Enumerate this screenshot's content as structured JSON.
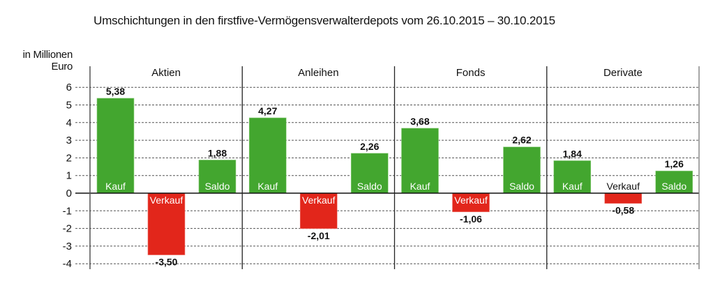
{
  "chart_data": {
    "type": "bar",
    "title": "Umschichtungen in den firstfive-Vermögensverwalterdepots vom 26.10.2015 – 30.10.2015",
    "ylabel": [
      "in Millionen",
      "Euro"
    ],
    "xlabel": "",
    "ylim": [
      -4,
      6
    ],
    "yticks": [
      6,
      5,
      4,
      3,
      2,
      1,
      0,
      -1,
      -2,
      -3,
      -4
    ],
    "ytick_labels": [
      "6",
      "5",
      "4",
      "3",
      "2",
      "1",
      "0",
      "-1",
      "-2",
      "-3",
      "-4"
    ],
    "grid": true,
    "categories": [
      "Kauf",
      "Verkauf",
      "Saldo"
    ],
    "panels": [
      {
        "name": "Aktien",
        "values": [
          5.38,
          -3.5,
          1.88
        ],
        "labels": [
          "5,38",
          "-3,50",
          "1,88"
        ]
      },
      {
        "name": "Anleihen",
        "values": [
          4.27,
          -2.01,
          2.26
        ],
        "labels": [
          "4,27",
          "-2,01",
          "2,26"
        ]
      },
      {
        "name": "Fonds",
        "values": [
          3.68,
          -1.06,
          2.62
        ],
        "labels": [
          "3,68",
          "-1,06",
          "2,62"
        ]
      },
      {
        "name": "Derivate",
        "values": [
          1.84,
          -0.58,
          1.26
        ],
        "labels": [
          "1,84",
          "-0,58",
          "1,26"
        ]
      }
    ],
    "colors": {
      "positive": "#43a62f",
      "negative": "#e2261b"
    }
  }
}
